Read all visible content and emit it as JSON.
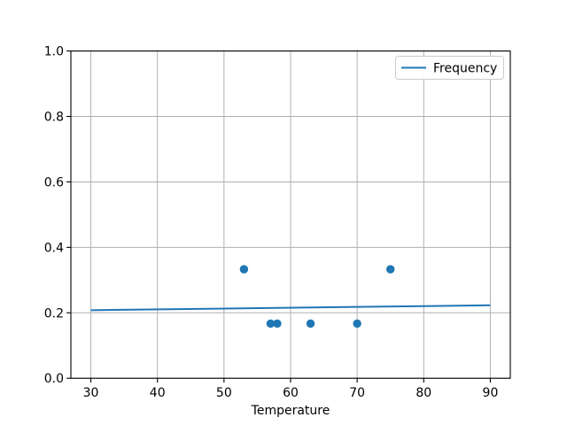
{
  "figure": {
    "background": "#ffffff"
  },
  "chart_data": {
    "type": "line+scatter",
    "title": "",
    "xlabel": "Temperature",
    "ylabel": "",
    "xlim": [
      27,
      93
    ],
    "ylim": [
      0.0,
      1.0
    ],
    "x_ticks": [
      30,
      40,
      50,
      60,
      70,
      80,
      90
    ],
    "x_tick_labels": [
      "30",
      "40",
      "50",
      "60",
      "70",
      "80",
      "90"
    ],
    "y_ticks": [
      0.0,
      0.2,
      0.4,
      0.6,
      0.8,
      1.0
    ],
    "y_tick_labels": [
      "0.0",
      "0.2",
      "0.4",
      "0.6",
      "0.8",
      "1.0"
    ],
    "grid": true,
    "legend": {
      "position": "upper right",
      "entries": [
        {
          "label": "Frequency",
          "marker": "line",
          "color": "#1f77b4"
        }
      ]
    },
    "series": [
      {
        "name": "Frequency",
        "type": "line",
        "color": "#1f77b4",
        "x": [
          30,
          90
        ],
        "y": [
          0.208,
          0.223
        ]
      },
      {
        "type": "scatter",
        "color": "#1f77b4",
        "x": [
          53,
          57,
          58,
          63,
          70,
          75
        ],
        "y": [
          0.333,
          0.167,
          0.167,
          0.167,
          0.167,
          0.333
        ]
      }
    ],
    "colors": {
      "accent": "#1f77b4",
      "grid": "#b0b0b0",
      "spine": "#000000",
      "text": "#000000",
      "legend_border": "#cccccc",
      "background": "#ffffff"
    }
  }
}
